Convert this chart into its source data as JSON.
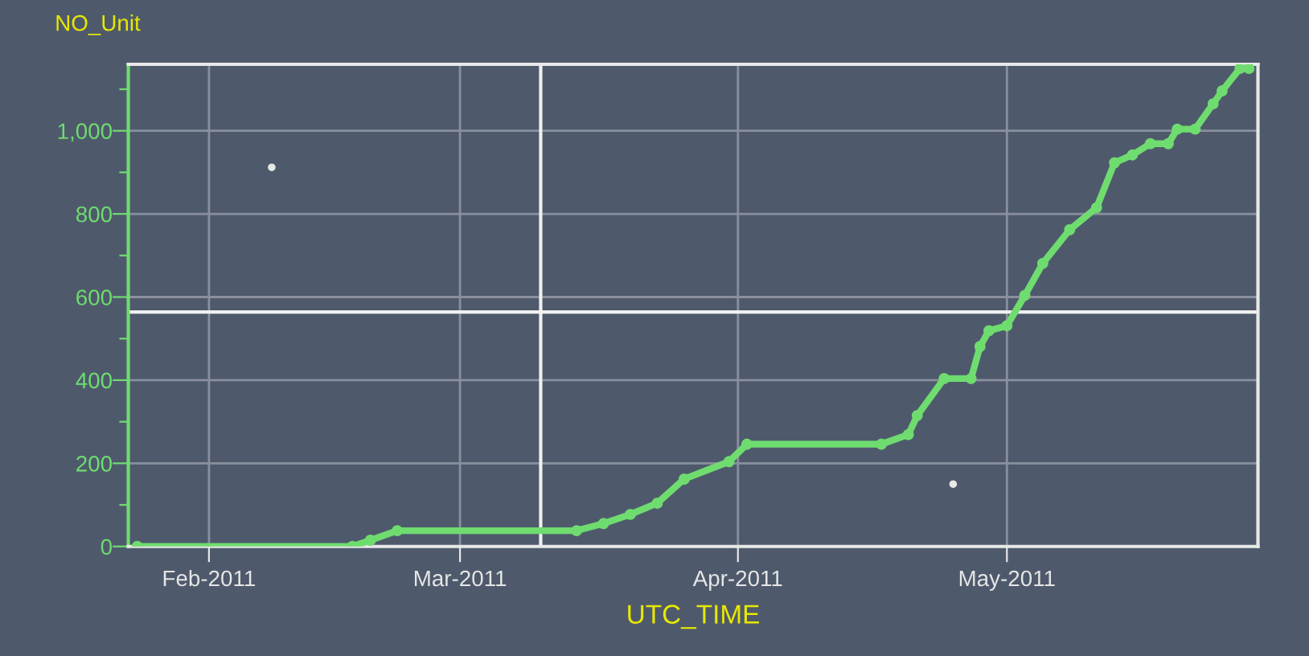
{
  "chart_data": {
    "type": "line",
    "ylabel": "NO_Unit",
    "xlabel": "UTC_TIME",
    "series": [
      {
        "color": "#6fdc6f",
        "marker": "circle",
        "x": [
          "2011-01-24",
          "2011-02-17",
          "2011-02-19",
          "2011-02-22",
          "2011-03-14",
          "2011-03-17",
          "2011-03-20",
          "2011-03-23",
          "2011-03-26",
          "2011-03-31",
          "2011-04-02",
          "2011-04-17",
          "2011-04-20",
          "2011-04-21",
          "2011-04-24",
          "2011-04-27",
          "2011-04-28",
          "2011-04-29",
          "2011-05-01",
          "2011-05-03",
          "2011-05-05",
          "2011-05-08",
          "2011-05-11",
          "2011-05-13",
          "2011-05-15",
          "2011-05-17",
          "2011-05-19",
          "2011-05-20",
          "2011-05-22",
          "2011-05-24",
          "2011-05-25",
          "2011-05-27",
          "2011-05-28"
        ],
        "values": [
          0,
          0,
          15,
          38,
          38,
          55,
          77,
          104,
          162,
          204,
          246,
          246,
          269,
          315,
          404,
          404,
          481,
          519,
          531,
          604,
          681,
          762,
          815,
          923,
          942,
          969,
          969,
          1004,
          1004,
          1065,
          1096,
          1150,
          1150
        ]
      },
      {
        "type": "scatter",
        "color": "#e8e8e8",
        "marker": "circle",
        "x": [
          "2011-02-08",
          "2011-04-25"
        ],
        "values": [
          912,
          150
        ]
      }
    ],
    "xlim": [
      "2011-01-23",
      "2011-05-29"
    ],
    "xticks": [
      {
        "value": "2011-02-01",
        "label": "Feb-2011"
      },
      {
        "value": "2011-03-01",
        "label": "Mar-2011"
      },
      {
        "value": "2011-04-01",
        "label": "Apr-2011"
      },
      {
        "value": "2011-05-01",
        "label": "May-2011"
      }
    ],
    "ylim": [
      0,
      1160
    ],
    "yticks": [
      0,
      {
        "value": 100,
        "label": null
      },
      200,
      {
        "value": 300,
        "label": null
      },
      400,
      {
        "value": 500,
        "label": null
      },
      600,
      {
        "value": 700,
        "label": null
      },
      800,
      {
        "value": 900,
        "label": null
      },
      {
        "value": 1000,
        "label": "1,000"
      },
      {
        "value": 1100,
        "label": null
      }
    ],
    "ref_lines": [
      {
        "axis": "x",
        "value": "2011-03-10",
        "color": "#f0f0f0"
      },
      {
        "axis": "y",
        "value": 564,
        "color": "#f0f0f0"
      }
    ],
    "grid": true,
    "legend": false
  }
}
